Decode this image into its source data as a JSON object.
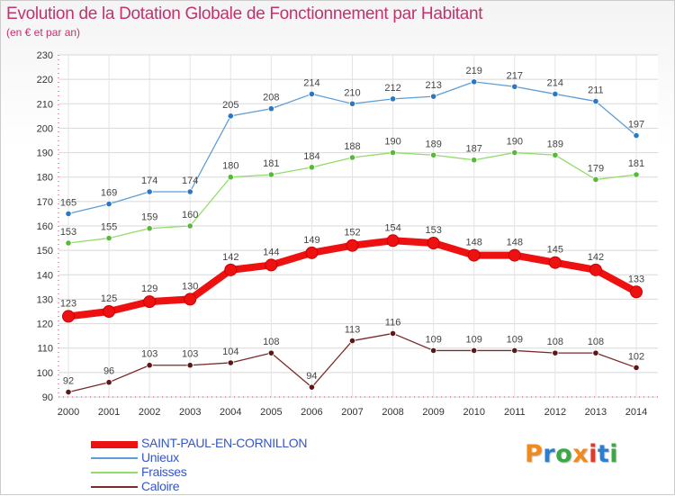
{
  "title": "Evolution de la Dotation Globale de Fonctionnement par Habitant",
  "subtitle": "(en € et par an)",
  "logo": {
    "text": "Proxiti",
    "letters": [
      "P",
      "r",
      "o",
      "x",
      "i",
      "t",
      "i"
    ],
    "colors": [
      "#f08a1c",
      "#2a7fd4",
      "#39a845",
      "#f08a1c",
      "#e03a2a",
      "#2a7fd4",
      "#39a845"
    ]
  },
  "chart_data": {
    "type": "line",
    "title": "Evolution de la Dotation Globale de Fonctionnement par Habitant",
    "subtitle": "(en € et par an)",
    "xlabel": "",
    "ylabel": "",
    "ylim": [
      90,
      230
    ],
    "yticks": [
      90,
      100,
      110,
      120,
      130,
      140,
      150,
      160,
      170,
      180,
      190,
      200,
      210,
      220,
      230
    ],
    "grid": true,
    "legend_position": "bottom-left",
    "x": [
      "2000",
      "2001",
      "2002",
      "2003",
      "2004",
      "2005",
      "2006",
      "2007",
      "2008",
      "2009",
      "2010",
      "2011",
      "2012",
      "2013",
      "2014"
    ],
    "series": [
      {
        "name": "SAINT-PAUL-EN-CORNILLON",
        "color": "#ee1111",
        "marker": "#ee1111",
        "bold": true,
        "values": [
          123,
          125,
          129,
          130,
          142,
          144,
          149,
          152,
          154,
          153,
          148,
          148,
          145,
          142,
          133
        ]
      },
      {
        "name": "Unieux",
        "color": "#5c9ed6",
        "marker": "#2b78c2",
        "bold": false,
        "values": [
          165,
          169,
          174,
          174,
          205,
          208,
          214,
          210,
          212,
          213,
          219,
          217,
          214,
          211,
          197
        ]
      },
      {
        "name": "Fraisses",
        "color": "#92dd6a",
        "marker": "#58b83a",
        "bold": false,
        "values": [
          153,
          155,
          159,
          160,
          180,
          181,
          184,
          188,
          190,
          189,
          187,
          190,
          189,
          179,
          181
        ]
      },
      {
        "name": "Caloire",
        "color": "#7a2a2a",
        "marker": "#5c1616",
        "bold": false,
        "values": [
          92,
          96,
          103,
          103,
          104,
          108,
          94,
          113,
          116,
          109,
          109,
          109,
          108,
          108,
          102
        ]
      }
    ]
  }
}
